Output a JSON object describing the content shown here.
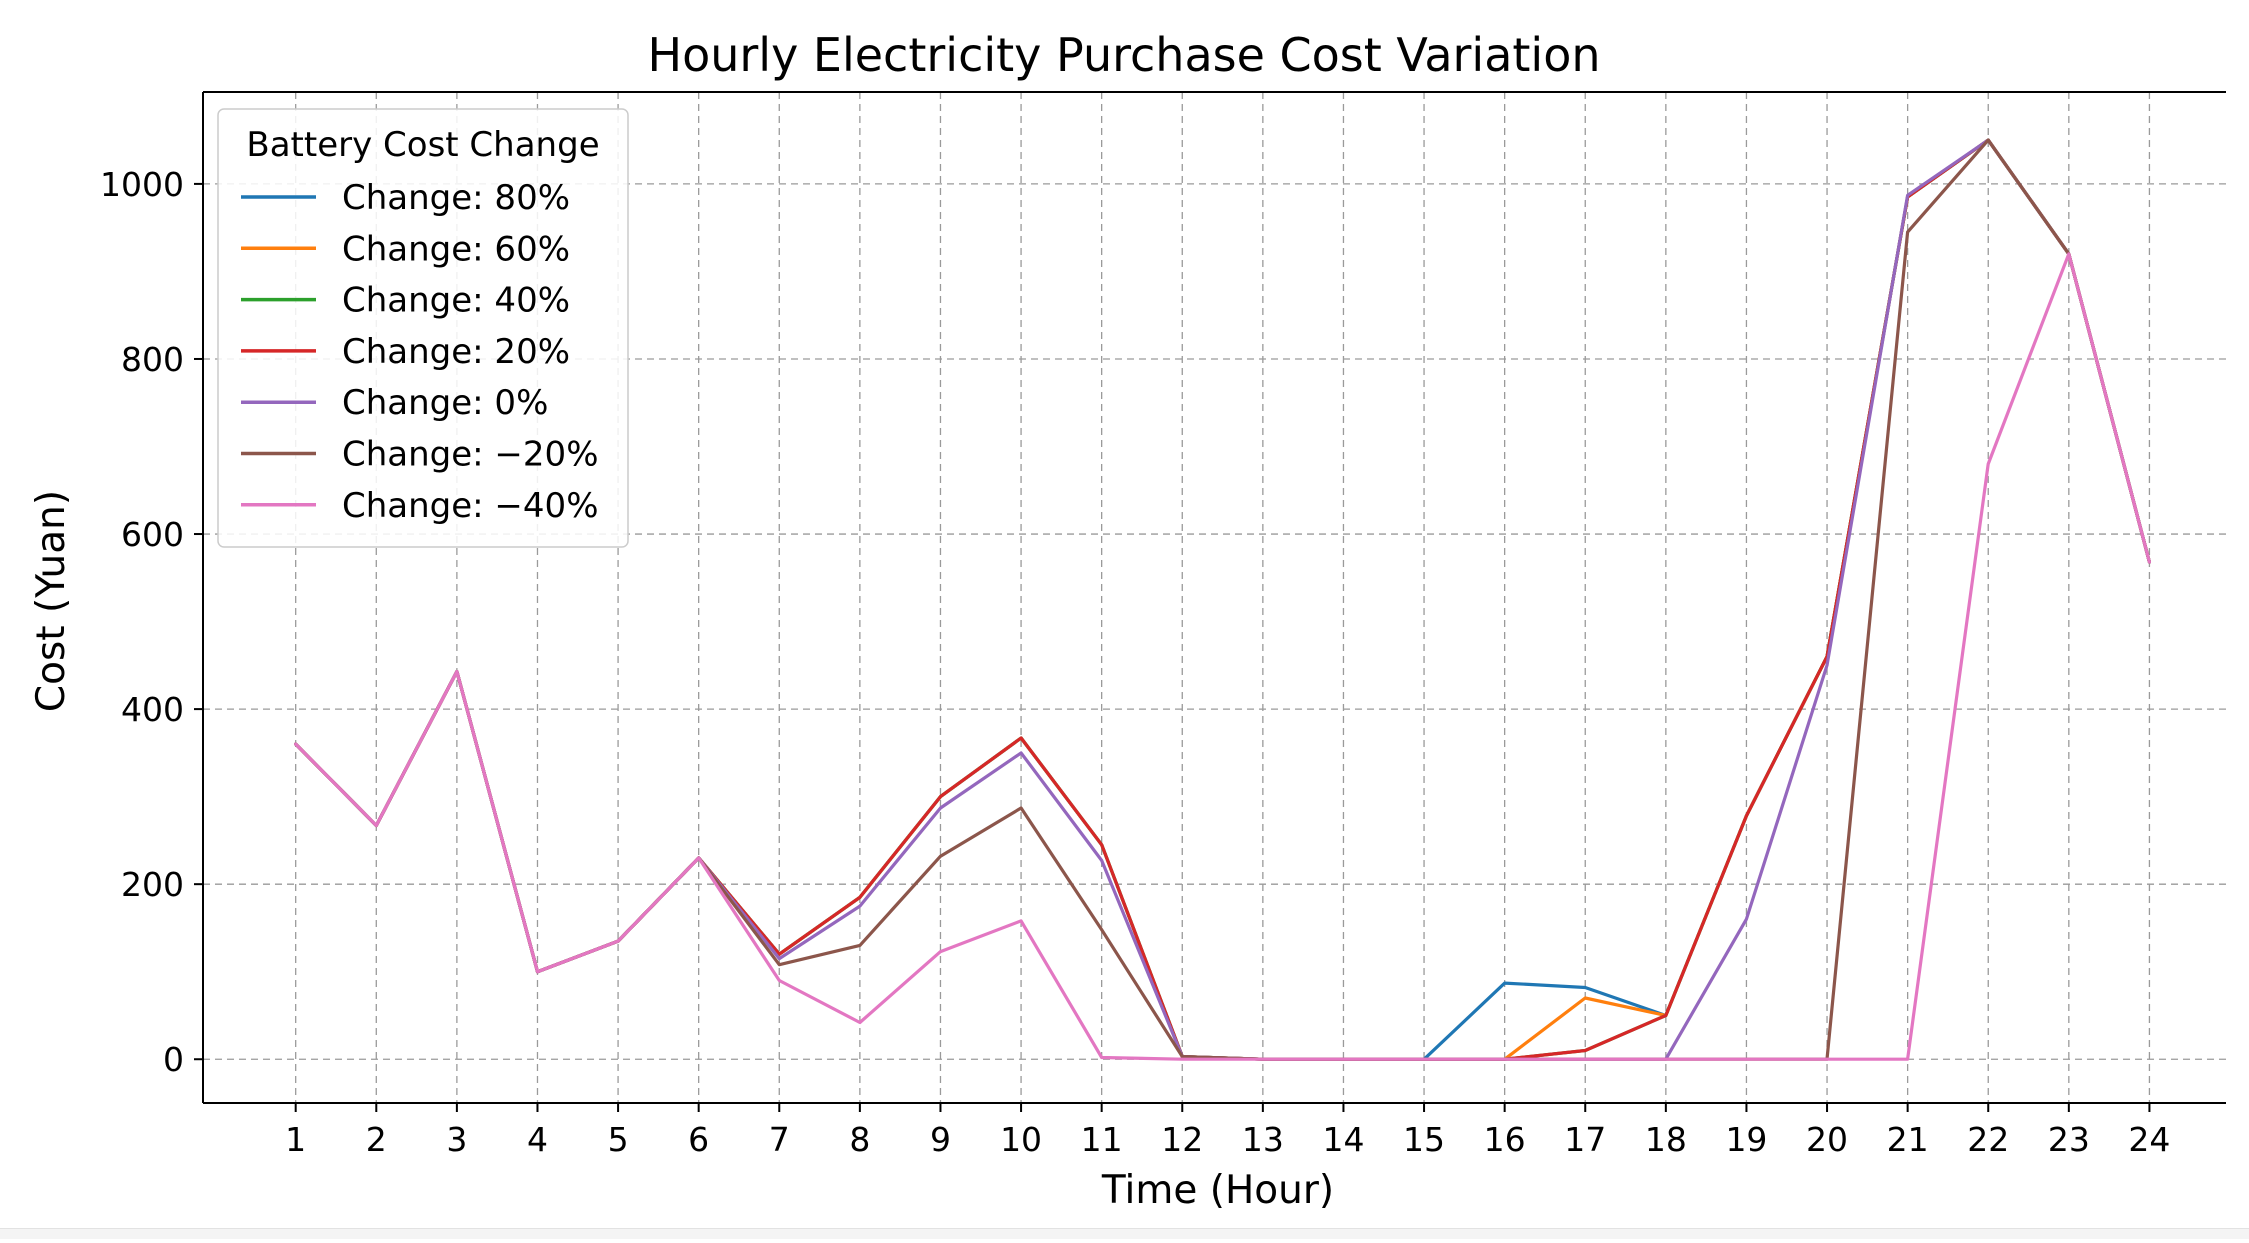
{
  "chart_data": {
    "type": "line",
    "title": "Hourly Electricity Purchase Cost Variation",
    "xlabel": "Time (Hour)",
    "ylabel": "Cost (Yuan)",
    "xlim": [
      -0.15,
      24.95
    ],
    "ylim": [
      -50,
      1105
    ],
    "grid": true,
    "x": [
      1,
      2,
      3,
      4,
      5,
      6,
      7,
      8,
      9,
      10,
      11,
      12,
      13,
      14,
      15,
      16,
      17,
      18,
      19,
      20,
      21,
      22,
      23,
      24
    ],
    "x_tick_labels": [
      "1",
      "2",
      "3",
      "4",
      "5",
      "6",
      "7",
      "8",
      "9",
      "10",
      "11",
      "12",
      "13",
      "14",
      "15",
      "16",
      "17",
      "18",
      "19",
      "20",
      "21",
      "22",
      "23",
      "24"
    ],
    "y_ticks": [
      0,
      200,
      400,
      600,
      800,
      1000
    ],
    "y_tick_labels": [
      "0",
      "200",
      "400",
      "600",
      "800",
      "1000"
    ],
    "legend": {
      "title": "Battery Cost Change",
      "position": "top-left"
    },
    "series": [
      {
        "name": "Change: 80%",
        "color": "#1f77b4",
        "values": [
          360,
          267,
          443,
          100,
          135,
          230,
          120,
          185,
          300,
          367,
          245,
          3,
          0,
          0,
          0,
          87,
          82,
          50,
          278,
          460,
          985,
          1050,
          920,
          568
        ]
      },
      {
        "name": "Change: 60%",
        "color": "#ff7f0e",
        "values": [
          360,
          267,
          443,
          100,
          135,
          230,
          120,
          185,
          300,
          367,
          245,
          3,
          0,
          0,
          0,
          0,
          70,
          50,
          278,
          460,
          985,
          1050,
          920,
          568
        ]
      },
      {
        "name": "Change: 40%",
        "color": "#2ca02c",
        "values": [
          360,
          267,
          443,
          100,
          135,
          230,
          120,
          185,
          300,
          367,
          245,
          3,
          0,
          0,
          0,
          0,
          10,
          50,
          278,
          460,
          985,
          1050,
          920,
          568
        ]
      },
      {
        "name": "Change: 20%",
        "color": "#d62728",
        "values": [
          360,
          267,
          443,
          100,
          135,
          230,
          120,
          185,
          300,
          367,
          245,
          3,
          0,
          0,
          0,
          0,
          10,
          50,
          278,
          460,
          985,
          1050,
          920,
          568
        ]
      },
      {
        "name": "Change: 0%",
        "color": "#9467bd",
        "values": [
          360,
          267,
          443,
          100,
          135,
          230,
          115,
          175,
          287,
          350,
          227,
          3,
          0,
          0,
          0,
          0,
          0,
          0,
          160,
          450,
          987,
          1050,
          920,
          568
        ]
      },
      {
        "name": "Change: −20%",
        "color": "#8c564b",
        "values": [
          360,
          267,
          443,
          100,
          135,
          230,
          108,
          130,
          232,
          287,
          148,
          3,
          0,
          0,
          0,
          0,
          0,
          0,
          0,
          0,
          945,
          1050,
          920,
          568
        ]
      },
      {
        "name": "Change: −40%",
        "color": "#e377c2",
        "values": [
          360,
          267,
          443,
          100,
          135,
          230,
          90,
          42,
          123,
          158,
          2,
          0,
          0,
          0,
          0,
          0,
          0,
          0,
          0,
          0,
          0,
          680,
          920,
          568
        ]
      }
    ]
  }
}
